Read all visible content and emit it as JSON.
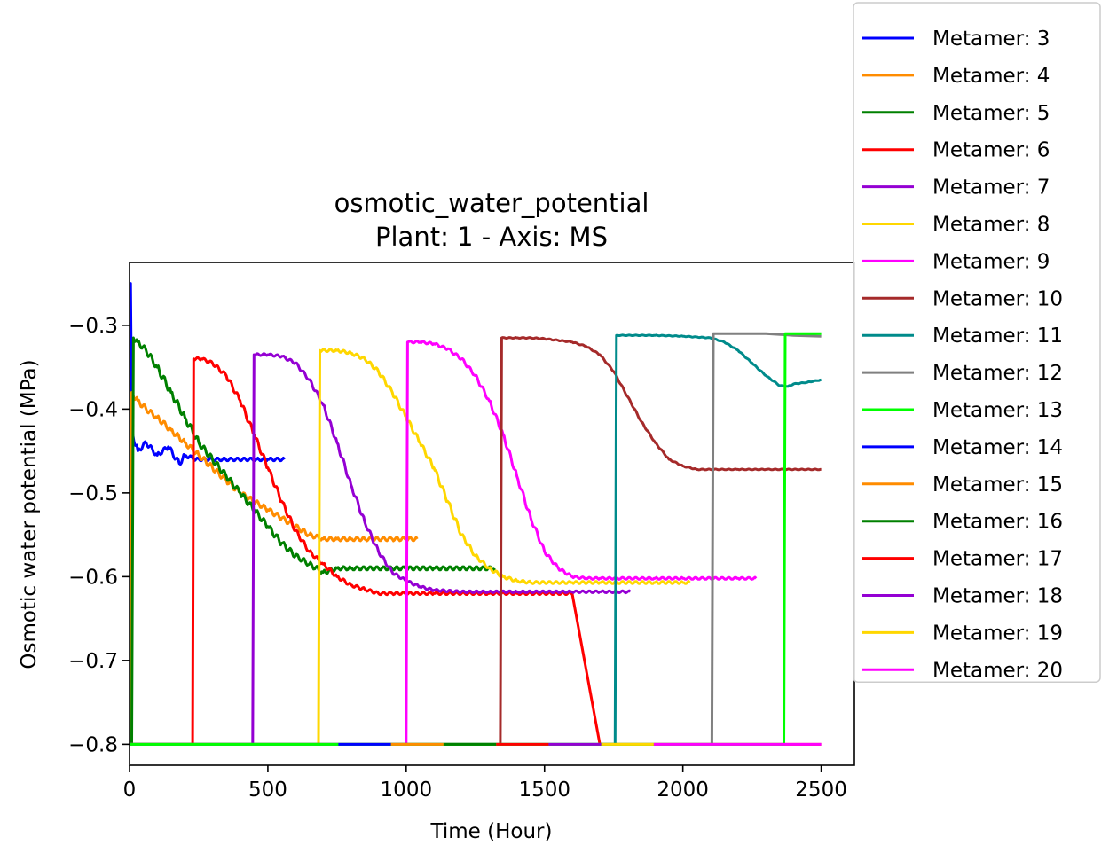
{
  "chart_data": {
    "type": "line",
    "title": "osmotic_water_potential",
    "subtitle": "Plant: 1 - Axis: MS",
    "xlabel": "Time (Hour)",
    "ylabel": "Osmotic water potential (MPa)",
    "xlim": [
      0,
      2620
    ],
    "ylim": [
      -0.825,
      -0.225
    ],
    "xticks": [
      0,
      500,
      1000,
      1500,
      2000,
      2500
    ],
    "xtick_labels": [
      "0",
      "500",
      "1000",
      "1500",
      "2000",
      "2500"
    ],
    "yticks": [
      -0.3,
      -0.4,
      -0.5,
      -0.6,
      -0.7,
      -0.8
    ],
    "ytick_labels": [
      "−0.3",
      "−0.4",
      "−0.5",
      "−0.6",
      "−0.7",
      "−0.8"
    ],
    "grid": false,
    "legend_position": "outside-right",
    "series": [
      {
        "name": "Metamer: 3",
        "color": "#0000ff",
        "x": [
          0,
          4,
          8,
          12,
          30,
          60,
          100,
          140,
          180,
          200,
          240,
          300,
          360,
          420,
          460,
          500,
          540,
          560
        ],
        "y": [
          -0.8,
          -0.25,
          -0.44,
          -0.43,
          -0.45,
          -0.44,
          -0.455,
          -0.445,
          -0.465,
          -0.455,
          -0.46,
          -0.46,
          -0.46,
          -0.46,
          -0.46,
          -0.46,
          -0.46,
          -0.46
        ],
        "wiggle": 0.015
      },
      {
        "name": "Metamer: 4",
        "color": "#ff8c00",
        "x": [
          0,
          4,
          8,
          30,
          60,
          100,
          150,
          200,
          250,
          300,
          350,
          400,
          450,
          500,
          550,
          600,
          650,
          700,
          750,
          800,
          850,
          900,
          950,
          1000,
          1040
        ],
        "y": [
          -0.8,
          -0.8,
          -0.38,
          -0.39,
          -0.4,
          -0.41,
          -0.425,
          -0.44,
          -0.455,
          -0.47,
          -0.485,
          -0.5,
          -0.51,
          -0.52,
          -0.53,
          -0.54,
          -0.55,
          -0.555,
          -0.555,
          -0.555,
          -0.555,
          -0.555,
          -0.555,
          -0.555,
          -0.555
        ],
        "wiggle": 0.018
      },
      {
        "name": "Metamer: 5",
        "color": "#008000",
        "x": [
          0,
          8,
          14,
          30,
          60,
          100,
          150,
          200,
          250,
          300,
          350,
          400,
          450,
          500,
          550,
          600,
          650,
          700,
          750,
          800,
          900,
          1000,
          1100,
          1200,
          1320
        ],
        "y": [
          -0.8,
          -0.8,
          -0.315,
          -0.32,
          -0.33,
          -0.35,
          -0.38,
          -0.41,
          -0.44,
          -0.46,
          -0.48,
          -0.5,
          -0.52,
          -0.54,
          -0.56,
          -0.575,
          -0.585,
          -0.595,
          -0.59,
          -0.59,
          -0.59,
          -0.59,
          -0.59,
          -0.59,
          -0.59
        ],
        "wiggle": 0.018
      },
      {
        "name": "Metamer: 6",
        "color": "#ff0000",
        "x": [
          0,
          228,
          232,
          260,
          300,
          350,
          400,
          450,
          500,
          550,
          600,
          650,
          700,
          750,
          800,
          850,
          900,
          950,
          1000,
          1100,
          1200,
          1300,
          1400,
          1500,
          1600,
          1700,
          1800,
          1900,
          2000,
          2500
        ],
        "y": [
          -0.8,
          -0.8,
          -0.34,
          -0.34,
          -0.345,
          -0.36,
          -0.39,
          -0.43,
          -0.47,
          -0.51,
          -0.545,
          -0.57,
          -0.585,
          -0.6,
          -0.61,
          -0.615,
          -0.62,
          -0.62,
          -0.62,
          -0.62,
          -0.62,
          -0.62,
          -0.62,
          -0.62,
          -0.62,
          -0.8,
          -0.8,
          -0.8,
          -0.8,
          -0.8
        ],
        "wiggle": 0.012
      },
      {
        "name": "Metamer: 7",
        "color": "#9400d3",
        "x": [
          0,
          445,
          450,
          500,
          550,
          600,
          650,
          700,
          750,
          800,
          850,
          900,
          950,
          1000,
          1050,
          1100,
          1200,
          1300,
          1400,
          1500,
          1600,
          1700,
          1810
        ],
        "y": [
          -0.8,
          -0.8,
          -0.335,
          -0.335,
          -0.337,
          -0.345,
          -0.365,
          -0.395,
          -0.44,
          -0.49,
          -0.535,
          -0.57,
          -0.595,
          -0.605,
          -0.612,
          -0.616,
          -0.618,
          -0.618,
          -0.618,
          -0.618,
          -0.618,
          -0.618,
          -0.618
        ],
        "wiggle": 0.01
      },
      {
        "name": "Metamer: 8",
        "color": "#ffd700",
        "x": [
          0,
          683,
          688,
          750,
          800,
          850,
          900,
          950,
          1000,
          1050,
          1100,
          1150,
          1200,
          1250,
          1300,
          1350,
          1400,
          1450,
          1500,
          1600,
          1700,
          1800,
          1900,
          2000,
          2025
        ],
        "y": [
          -0.8,
          -0.8,
          -0.33,
          -0.33,
          -0.333,
          -0.34,
          -0.355,
          -0.38,
          -0.41,
          -0.44,
          -0.47,
          -0.51,
          -0.55,
          -0.575,
          -0.59,
          -0.6,
          -0.605,
          -0.607,
          -0.607,
          -0.607,
          -0.607,
          -0.607,
          -0.607,
          -0.607,
          -0.607
        ],
        "wiggle": 0.012
      },
      {
        "name": "Metamer: 9",
        "color": "#ff00ff",
        "x": [
          0,
          1000,
          1005,
          1050,
          1100,
          1150,
          1200,
          1250,
          1300,
          1350,
          1400,
          1450,
          1500,
          1550,
          1600,
          1650,
          1700,
          1750,
          1800,
          1900,
          2000,
          2100,
          2200,
          2265
        ],
        "y": [
          -0.8,
          -0.8,
          -0.32,
          -0.32,
          -0.322,
          -0.328,
          -0.34,
          -0.36,
          -0.39,
          -0.43,
          -0.48,
          -0.53,
          -0.57,
          -0.59,
          -0.6,
          -0.602,
          -0.602,
          -0.602,
          -0.602,
          -0.602,
          -0.602,
          -0.602,
          -0.602,
          -0.602
        ],
        "wiggle": 0.01
      },
      {
        "name": "Metamer: 10",
        "color": "#a52a2a",
        "x": [
          0,
          1340,
          1345,
          1400,
          1450,
          1500,
          1550,
          1600,
          1650,
          1700,
          1750,
          1800,
          1850,
          1900,
          1950,
          2000,
          2050,
          2100,
          2200,
          2300,
          2400,
          2500
        ],
        "y": [
          -0.8,
          -0.8,
          -0.315,
          -0.315,
          -0.315,
          -0.316,
          -0.318,
          -0.32,
          -0.325,
          -0.335,
          -0.355,
          -0.385,
          -0.415,
          -0.44,
          -0.46,
          -0.468,
          -0.472,
          -0.472,
          -0.472,
          -0.472,
          -0.472,
          -0.472
        ],
        "wiggle": 0.004
      },
      {
        "name": "Metamer: 11",
        "color": "#008b8b",
        "x": [
          0,
          1755,
          1760,
          1800,
          1900,
          2000,
          2100,
          2150,
          2200,
          2250,
          2300,
          2350,
          2380,
          2400,
          2450,
          2500
        ],
        "y": [
          -0.8,
          -0.8,
          -0.312,
          -0.312,
          -0.312,
          -0.313,
          -0.315,
          -0.32,
          -0.33,
          -0.345,
          -0.36,
          -0.372,
          -0.373,
          -0.37,
          -0.368,
          -0.365
        ],
        "wiggle": 0.003
      },
      {
        "name": "Metamer: 12",
        "color": "#808080",
        "x": [
          0,
          2105,
          2110,
          2200,
          2300,
          2400,
          2500
        ],
        "y": [
          -0.8,
          -0.8,
          -0.31,
          -0.31,
          -0.31,
          -0.312,
          -0.313
        ],
        "wiggle": 0
      },
      {
        "name": "Metamer: 13",
        "color": "#00ff00",
        "x": [
          0,
          2365,
          2370,
          2400,
          2450,
          2500
        ],
        "y": [
          -0.8,
          -0.8,
          -0.31,
          -0.31,
          -0.31,
          -0.31
        ],
        "wiggle": 0
      },
      {
        "name": "Metamer: 14",
        "color": "#0000ff",
        "x": [
          755,
          945
        ],
        "y": [
          -0.8,
          -0.8
        ],
        "wiggle": 0
      },
      {
        "name": "Metamer: 15",
        "color": "#ff8c00",
        "x": [
          945,
          1135
        ],
        "y": [
          -0.8,
          -0.8
        ],
        "wiggle": 0
      },
      {
        "name": "Metamer: 16",
        "color": "#008000",
        "x": [
          1135,
          1325
        ],
        "y": [
          -0.8,
          -0.8
        ],
        "wiggle": 0
      },
      {
        "name": "Metamer: 17",
        "color": "#ff0000",
        "x": [
          1325,
          1515
        ],
        "y": [
          -0.8,
          -0.8
        ],
        "wiggle": 0
      },
      {
        "name": "Metamer: 18",
        "color": "#9400d3",
        "x": [
          1515,
          1705
        ],
        "y": [
          -0.8,
          -0.8
        ],
        "wiggle": 0
      },
      {
        "name": "Metamer: 19",
        "color": "#ffd700",
        "x": [
          1705,
          1895
        ],
        "y": [
          -0.8,
          -0.8
        ],
        "wiggle": 0
      },
      {
        "name": "Metamer: 20",
        "color": "#ff00ff",
        "x": [
          1895,
          2500
        ],
        "y": [
          -0.8,
          -0.8
        ],
        "wiggle": 0
      }
    ]
  }
}
